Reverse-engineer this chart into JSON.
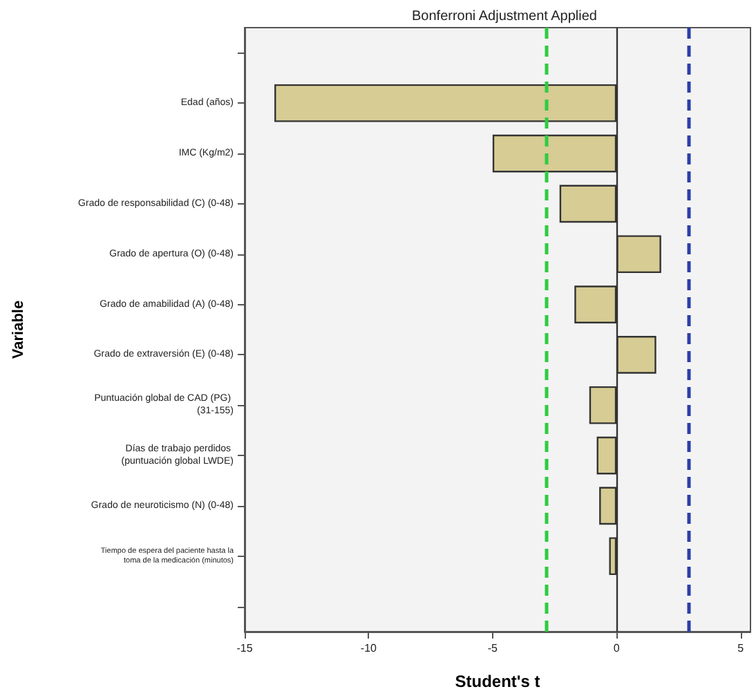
{
  "chart_data": {
    "type": "bar",
    "orientation": "horizontal",
    "title": "Bonferroni Adjustment Applied",
    "xlabel": "Student's t",
    "ylabel": "Variable",
    "categories": [
      null,
      "Edad (años)",
      "IMC (Kg/m2)",
      "Grado de responsabilidad (C) (0-48)",
      "Grado de apertura (O) (0-48)",
      "Grado de amabilidad (A) (0-48)",
      "Grado de extraversión (E) (0-48)",
      "Puntuación global de CAD (PG) (31-155)",
      "Días de trabajo perdidos (puntuación global LWDE)",
      "Grado de neuroticismo (N) (0-48)",
      "Tiempo de espera del paciente hasta la toma de la medicación (minutos)",
      null
    ],
    "values": [
      null,
      -13.8,
      -5.0,
      -2.3,
      1.8,
      -1.7,
      1.6,
      -1.1,
      -0.8,
      -0.7,
      -0.3,
      null
    ],
    "color": "#d6cc94",
    "xlim": [
      -15,
      5.4
    ],
    "xticks": [
      -15,
      -10,
      -5,
      0,
      5
    ],
    "ref_lines": [
      {
        "axis": "x",
        "value": 0,
        "color": "#333333",
        "line_style": "solid"
      },
      {
        "axis": "x",
        "value": -2.85,
        "color": "#2ecc40",
        "line_style": "dashed"
      },
      {
        "axis": "x",
        "value": 2.9,
        "color": "#2b3fa8",
        "line_style": "dashed"
      }
    ],
    "grid": false
  }
}
